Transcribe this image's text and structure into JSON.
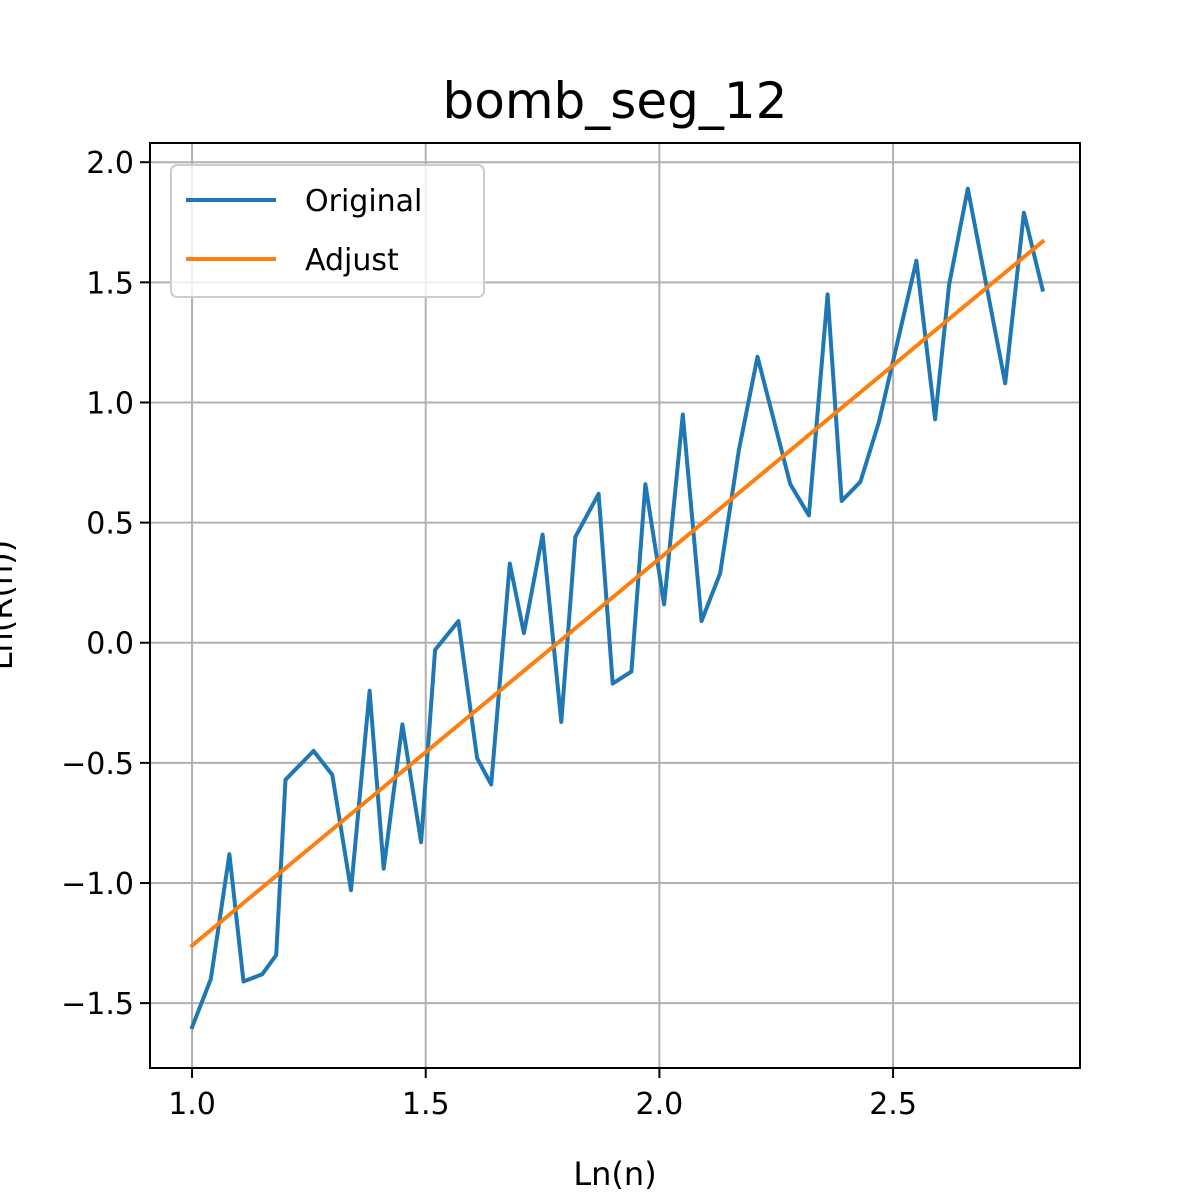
{
  "chart_data": {
    "type": "line",
    "title": "bomb_seg_12",
    "xlabel": "Ln(n)",
    "ylabel": "Ln(R(n))",
    "xlim": [
      0.91,
      2.9
    ],
    "ylim": [
      -1.77,
      2.08
    ],
    "xticks": [
      1.0,
      1.5,
      2.0,
      2.5
    ],
    "xtick_labels": [
      "1.0",
      "1.5",
      "2.0",
      "2.5"
    ],
    "yticks": [
      -1.5,
      -1.0,
      -0.5,
      0.0,
      0.5,
      1.0,
      1.5,
      2.0
    ],
    "ytick_labels": [
      "−1.5",
      "−1.0",
      "−0.5",
      "0.0",
      "0.5",
      "1.0",
      "1.5",
      "2.0"
    ],
    "grid": true,
    "legend_position": "top-left",
    "series": [
      {
        "name": "Original",
        "color": "#1f77b4",
        "x": [
          1.0,
          1.04,
          1.08,
          1.11,
          1.15,
          1.18,
          1.2,
          1.26,
          1.3,
          1.34,
          1.38,
          1.41,
          1.45,
          1.49,
          1.52,
          1.57,
          1.61,
          1.64,
          1.68,
          1.71,
          1.75,
          1.79,
          1.82,
          1.87,
          1.9,
          1.94,
          1.97,
          2.01,
          2.05,
          2.09,
          2.13,
          2.17,
          2.21,
          2.28,
          2.32,
          2.36,
          2.39,
          2.43,
          2.47,
          2.55,
          2.59,
          2.62,
          2.66,
          2.74,
          2.78,
          2.82
        ],
        "y": [
          -1.6,
          -1.4,
          -0.88,
          -1.41,
          -1.38,
          -1.3,
          -0.57,
          -0.45,
          -0.55,
          -1.03,
          -0.2,
          -0.94,
          -0.34,
          -0.83,
          -0.03,
          0.09,
          -0.48,
          -0.59,
          0.33,
          0.04,
          0.45,
          -0.33,
          0.44,
          0.62,
          -0.17,
          -0.12,
          0.66,
          0.16,
          0.95,
          0.09,
          0.29,
          0.8,
          1.19,
          0.66,
          0.53,
          1.45,
          0.59,
          0.67,
          0.92,
          1.59,
          0.93,
          1.49,
          1.89,
          1.08,
          1.79,
          1.47
        ]
      },
      {
        "name": "Adjust",
        "color": "#ff7f0e",
        "x": [
          1.0,
          2.82
        ],
        "y": [
          -1.26,
          1.67
        ]
      }
    ]
  }
}
